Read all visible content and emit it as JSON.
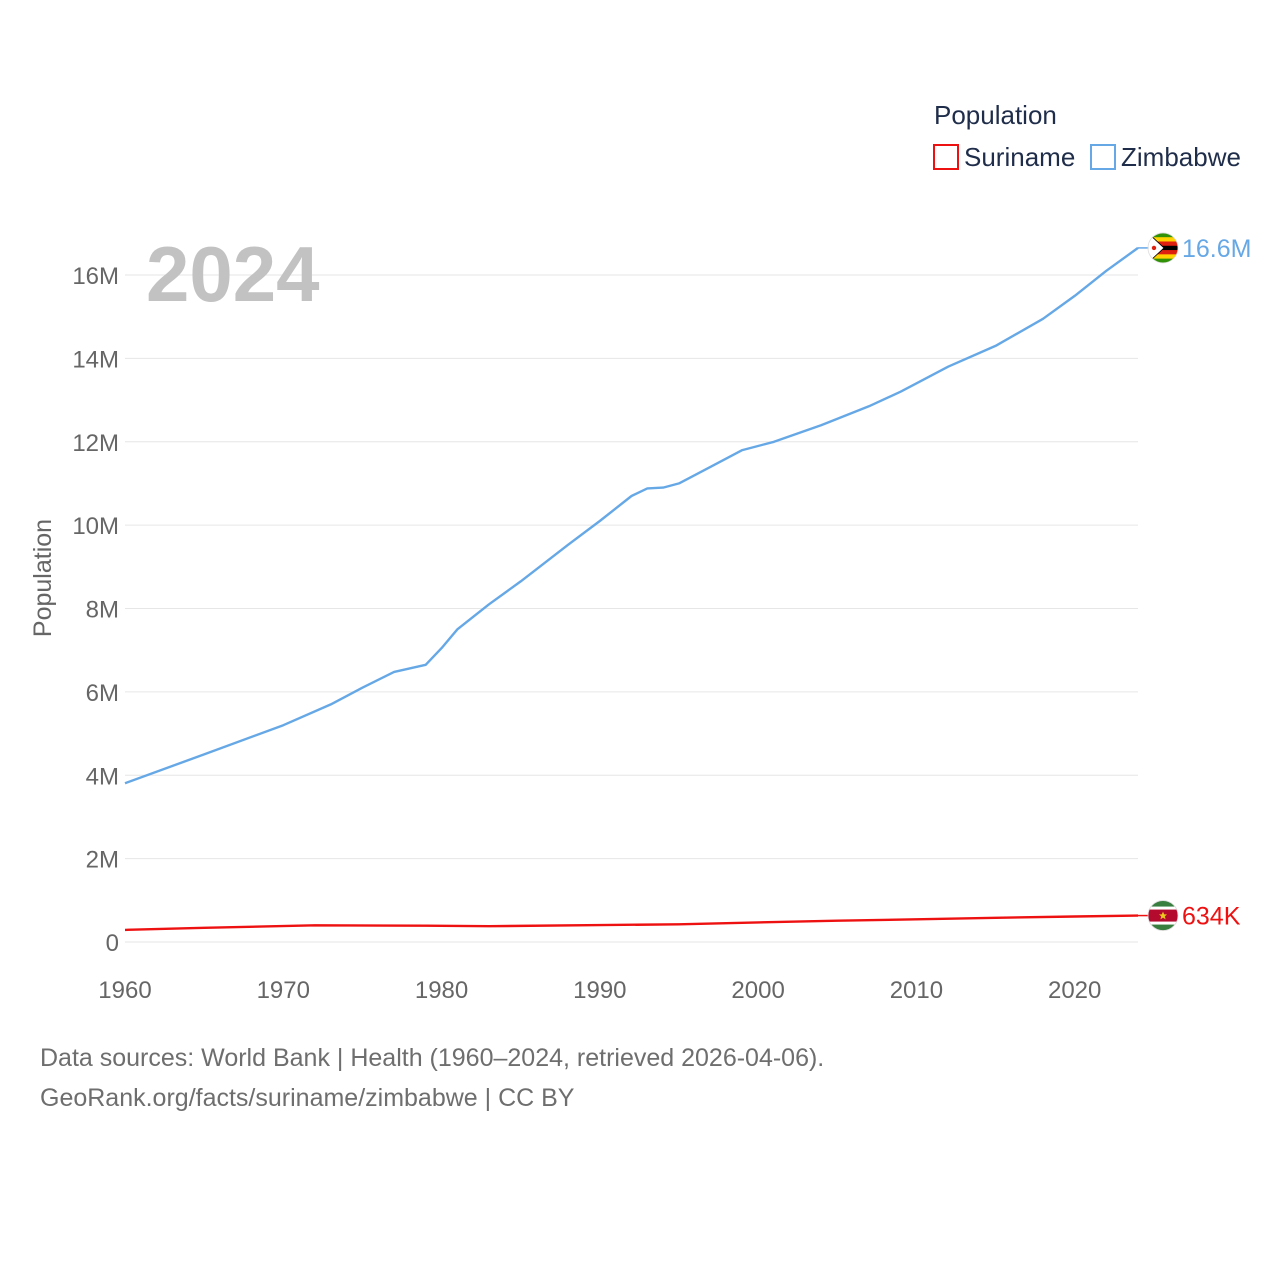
{
  "chart_data": {
    "type": "line",
    "big_year": "2024",
    "ylabel": "Population",
    "legend_title": "Population",
    "x_ticks": [
      1960,
      1970,
      1980,
      1990,
      2000,
      2010,
      2020
    ],
    "y_ticks": [
      {
        "value": 0,
        "label": "0"
      },
      {
        "value": 2000000,
        "label": "2M"
      },
      {
        "value": 4000000,
        "label": "4M"
      },
      {
        "value": 6000000,
        "label": "6M"
      },
      {
        "value": 8000000,
        "label": "8M"
      },
      {
        "value": 10000000,
        "label": "10M"
      },
      {
        "value": 12000000,
        "label": "12M"
      },
      {
        "value": 14000000,
        "label": "14M"
      },
      {
        "value": 16000000,
        "label": "16M"
      }
    ],
    "xlim": [
      1960,
      2024
    ],
    "ylim": [
      0,
      16600000
    ],
    "series": [
      {
        "name": "Suriname",
        "color": "#ee1111",
        "end_label": "634K",
        "points": [
          [
            1960,
            290000
          ],
          [
            1965,
            340000
          ],
          [
            1972,
            400000
          ],
          [
            1979,
            390000
          ],
          [
            1983,
            380000
          ],
          [
            1990,
            405000
          ],
          [
            1995,
            425000
          ],
          [
            2000,
            470000
          ],
          [
            2005,
            510000
          ],
          [
            2010,
            545000
          ],
          [
            2015,
            580000
          ],
          [
            2020,
            612000
          ],
          [
            2024,
            634000
          ]
        ]
      },
      {
        "name": "Zimbabwe",
        "color": "#66a8e6",
        "end_label": "16.6M",
        "points": [
          [
            1960,
            3810000
          ],
          [
            1965,
            4500000
          ],
          [
            1970,
            5200000
          ],
          [
            1973,
            5700000
          ],
          [
            1975,
            6100000
          ],
          [
            1977,
            6480000
          ],
          [
            1979,
            6650000
          ],
          [
            1980,
            7050000
          ],
          [
            1981,
            7500000
          ],
          [
            1983,
            8100000
          ],
          [
            1985,
            8650000
          ],
          [
            1988,
            9530000
          ],
          [
            1990,
            10100000
          ],
          [
            1992,
            10700000
          ],
          [
            1993,
            10880000
          ],
          [
            1994,
            10900000
          ],
          [
            1995,
            11000000
          ],
          [
            1997,
            11400000
          ],
          [
            1999,
            11800000
          ],
          [
            2001,
            12000000
          ],
          [
            2004,
            12400000
          ],
          [
            2007,
            12850000
          ],
          [
            2009,
            13200000
          ],
          [
            2012,
            13800000
          ],
          [
            2015,
            14300000
          ],
          [
            2018,
            14950000
          ],
          [
            2020,
            15500000
          ],
          [
            2022,
            16100000
          ],
          [
            2024,
            16650000
          ]
        ]
      }
    ]
  },
  "source": {
    "line1": "Data sources: World Bank | Health (1960–2024, retrieved 2026-04-06).",
    "line2": "GeoRank.org/facts/suriname/zimbabwe | CC BY"
  }
}
